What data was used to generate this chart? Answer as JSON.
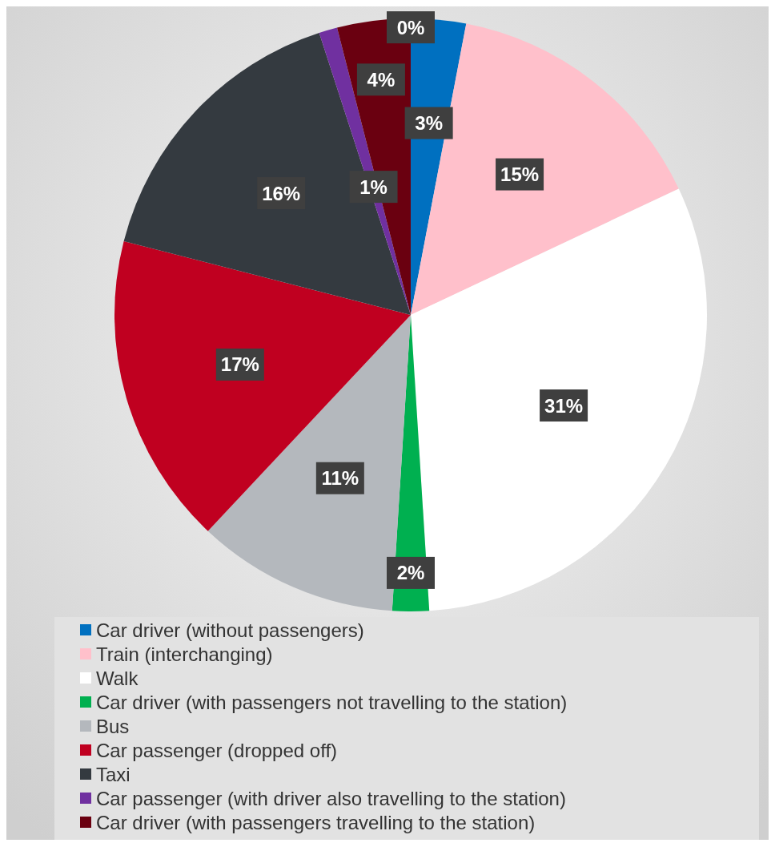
{
  "chart_data": {
    "type": "pie",
    "categories": [
      "Car driver (without passengers)",
      "Train (interchanging)",
      "Walk",
      "Car driver (with passengers not travelling to the station)",
      "Bus",
      "Car passenger (dropped off)",
      "Taxi",
      "Car passenger (with driver also travelling to the station)",
      "Car driver (with passengers travelling to the station)",
      null
    ],
    "values": [
      3,
      15,
      31,
      2,
      11,
      17,
      16,
      1,
      4,
      0
    ],
    "colors": [
      "#0070c0",
      "#ffc0cb",
      "#ffffff",
      "#00b050",
      "#b4b8bd",
      "#c00020",
      "#343a40",
      "#7030a0",
      "#6a0010",
      "#000000"
    ],
    "value_labels": [
      "3%",
      "15%",
      "31%",
      "2%",
      "11%",
      "17%",
      "16%",
      "1%",
      "4%",
      "0%"
    ],
    "legend": "bottom"
  }
}
